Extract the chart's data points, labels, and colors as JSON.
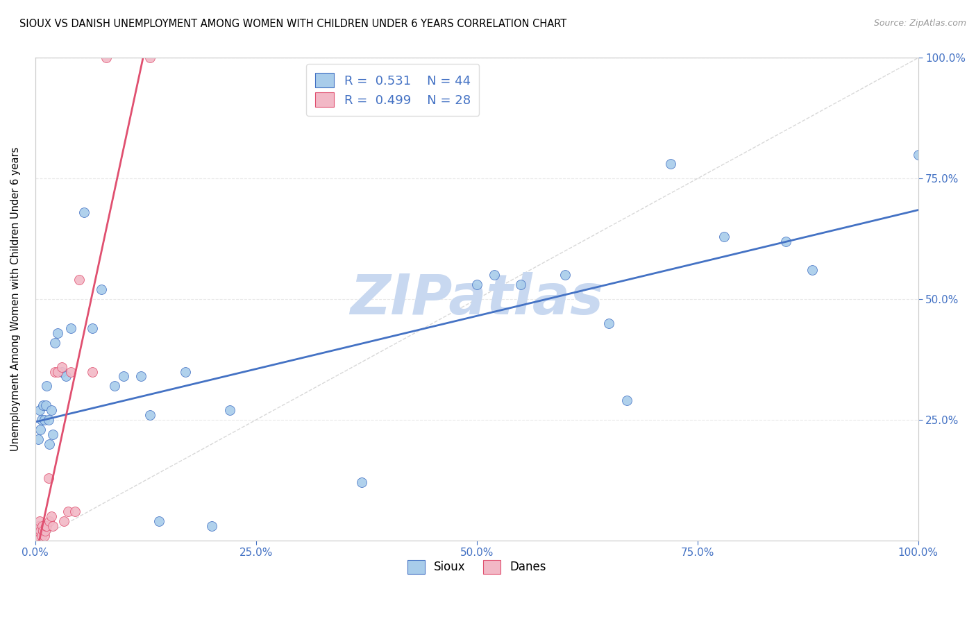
{
  "title": "SIOUX VS DANISH UNEMPLOYMENT AMONG WOMEN WITH CHILDREN UNDER 6 YEARS CORRELATION CHART",
  "source": "Source: ZipAtlas.com",
  "ylabel_label": "Unemployment Among Women with Children Under 6 years",
  "sioux_R": 0.531,
  "sioux_N": 44,
  "danes_R": 0.499,
  "danes_N": 28,
  "sioux_color": "#A8CCEA",
  "danes_color": "#F2B8C6",
  "trendline_sioux_color": "#4472C4",
  "trendline_danes_color": "#E05070",
  "trendline_diag_color": "#C8C8C8",
  "watermark_color": "#C8D8F0",
  "tick_color": "#4472C4",
  "sioux_x": [
    0.002,
    0.003,
    0.004,
    0.005,
    0.006,
    0.007,
    0.008,
    0.009,
    0.01,
    0.011,
    0.012,
    0.013,
    0.015,
    0.016,
    0.018,
    0.02,
    0.022,
    0.025,
    0.03,
    0.035,
    0.04,
    0.055,
    0.065,
    0.075,
    0.09,
    0.1,
    0.12,
    0.13,
    0.14,
    0.17,
    0.2,
    0.22,
    0.37,
    0.5,
    0.52,
    0.55,
    0.6,
    0.65,
    0.67,
    0.72,
    0.78,
    0.85,
    0.88,
    1.0
  ],
  "sioux_y": [
    0.02,
    0.21,
    0.03,
    0.27,
    0.23,
    0.25,
    0.02,
    0.28,
    0.25,
    0.03,
    0.28,
    0.32,
    0.25,
    0.2,
    0.27,
    0.22,
    0.41,
    0.43,
    0.35,
    0.34,
    0.44,
    0.68,
    0.44,
    0.52,
    0.32,
    0.34,
    0.34,
    0.26,
    0.04,
    0.35,
    0.03,
    0.27,
    0.12,
    0.53,
    0.55,
    0.53,
    0.55,
    0.45,
    0.29,
    0.78,
    0.63,
    0.62,
    0.56,
    0.8
  ],
  "danes_x": [
    0.0,
    0.002,
    0.003,
    0.004,
    0.005,
    0.006,
    0.007,
    0.008,
    0.009,
    0.01,
    0.011,
    0.012,
    0.013,
    0.015,
    0.016,
    0.018,
    0.02,
    0.022,
    0.025,
    0.03,
    0.032,
    0.037,
    0.04,
    0.045,
    0.05,
    0.065,
    0.08,
    0.13
  ],
  "danes_y": [
    0.01,
    0.02,
    0.02,
    0.03,
    0.04,
    0.02,
    0.01,
    0.03,
    0.02,
    0.01,
    0.02,
    0.03,
    0.03,
    0.13,
    0.04,
    0.05,
    0.03,
    0.35,
    0.35,
    0.36,
    0.04,
    0.06,
    0.35,
    0.06,
    0.54,
    0.35,
    1.0,
    1.0
  ],
  "xlim": [
    0.0,
    1.0
  ],
  "ylim": [
    0.0,
    1.0
  ],
  "xtick_labels": [
    "0.0%",
    "25.0%",
    "50.0%",
    "75.0%",
    "100.0%"
  ],
  "xtick_vals": [
    0.0,
    0.25,
    0.5,
    0.75,
    1.0
  ],
  "ytick_labels": [
    "25.0%",
    "50.0%",
    "75.0%",
    "100.0%"
  ],
  "ytick_vals": [
    0.25,
    0.5,
    0.75,
    1.0
  ],
  "background_color": "#FFFFFF",
  "grid_color": "#E8E8E8",
  "marker_size": 100
}
